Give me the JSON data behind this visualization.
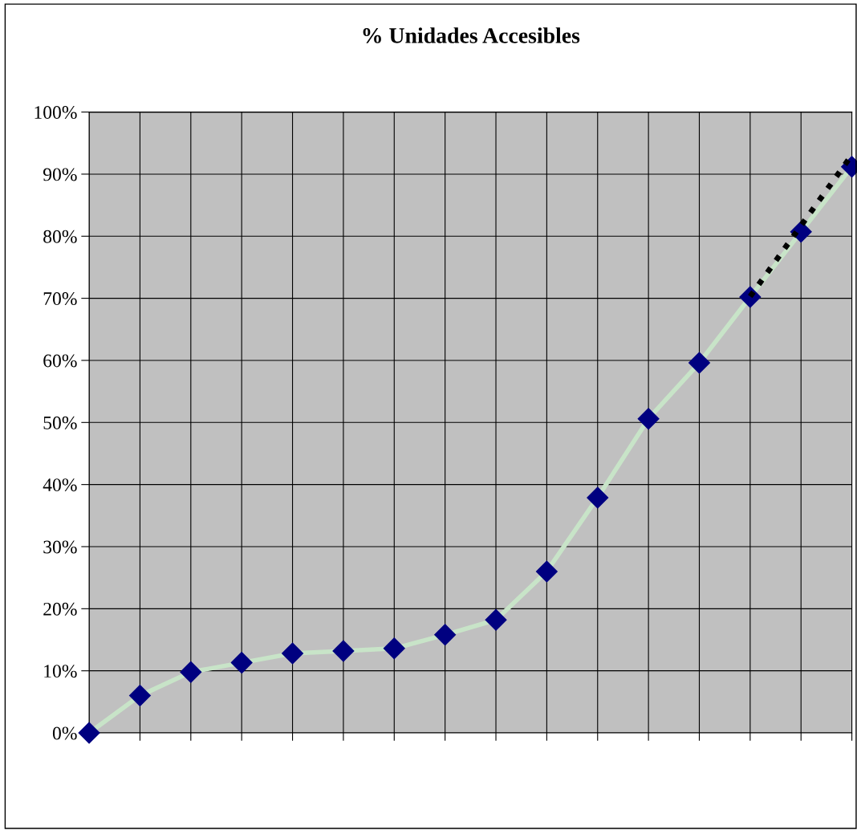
{
  "chart_data": {
    "type": "line",
    "title": "% Unidades Accesibles",
    "categories": [
      null,
      null,
      null,
      null,
      null,
      null,
      null,
      null,
      null,
      null,
      null,
      null,
      null,
      null,
      null,
      null
    ],
    "ylim": [
      0,
      100
    ],
    "yticks": [
      {
        "value": 0,
        "label": "0%"
      },
      {
        "value": 10,
        "label": "10%"
      },
      {
        "value": 20,
        "label": "20%"
      },
      {
        "value": 30,
        "label": "30%"
      },
      {
        "value": 40,
        "label": "40%"
      },
      {
        "value": 50,
        "label": "50%"
      },
      {
        "value": 60,
        "label": "60%"
      },
      {
        "value": 70,
        "label": "70%"
      },
      {
        "value": 80,
        "label": "80%"
      },
      {
        "value": 90,
        "label": "90%"
      },
      {
        "value": 100,
        "label": "100%"
      }
    ],
    "tick_labels": "y",
    "grid": true,
    "series": [
      {
        "color": "#c8e4c8",
        "marker": "diamond",
        "colors": [
          "#000080",
          "#000080",
          "#000080",
          "#000080",
          "#000080",
          "#000080",
          "#000080",
          "#000080",
          "#000080",
          "#000080",
          "#000080",
          "#000080",
          "#000080",
          "#000080",
          "#000080",
          "#000080"
        ],
        "line_style": "solid",
        "values": [
          0,
          6,
          9.8,
          11.3,
          12.8,
          13.2,
          13.6,
          15.8,
          18.2,
          26,
          37.9,
          50.6,
          59.6,
          70.2,
          80.7,
          91.2
        ]
      },
      {
        "type": "line",
        "color": "#000000",
        "marker": "none",
        "line_style": "dotted",
        "values": [
          null,
          null,
          null,
          null,
          null,
          null,
          null,
          null,
          null,
          null,
          null,
          null,
          null,
          70.3,
          81.7,
          93.1
        ]
      }
    ]
  }
}
